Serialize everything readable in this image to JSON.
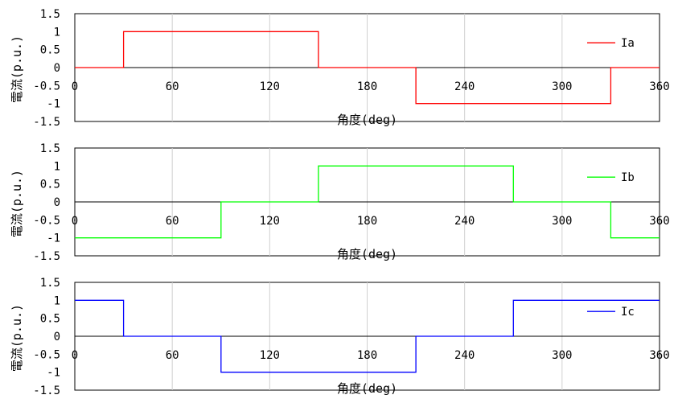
{
  "chart_data": [
    {
      "type": "line",
      "step": true,
      "xlabel": "角度(deg)",
      "ylabel": "電流(p.u.)",
      "xlim": [
        0,
        360
      ],
      "ylim": [
        -1.5,
        1.5
      ],
      "xticks": [
        0,
        60,
        120,
        180,
        240,
        300,
        360
      ],
      "yticks": [
        -1.5,
        -1,
        -0.5,
        0,
        0.5,
        1,
        1.5
      ],
      "ytick_labels": [
        "-1.5",
        "-1",
        "-0.5",
        "0",
        "0.5",
        "1",
        "1.5"
      ],
      "xtick_labels": [
        "0",
        "60",
        "120",
        "180",
        "240",
        "300",
        "360"
      ],
      "grid": true,
      "legend": "right",
      "series": [
        {
          "name": "Ia",
          "color": "#ff0000",
          "x": [
            0,
            30,
            30,
            150,
            150,
            210,
            210,
            330,
            330,
            360
          ],
          "values": [
            0,
            0,
            1,
            1,
            0,
            0,
            -1,
            -1,
            0,
            0
          ]
        }
      ]
    },
    {
      "type": "line",
      "step": true,
      "xlabel": "角度(deg)",
      "ylabel": "電流(p.u.)",
      "xlim": [
        0,
        360
      ],
      "ylim": [
        -1.5,
        1.5
      ],
      "xticks": [
        0,
        60,
        120,
        180,
        240,
        300,
        360
      ],
      "yticks": [
        -1.5,
        -1,
        -0.5,
        0,
        0.5,
        1,
        1.5
      ],
      "ytick_labels": [
        "-1.5",
        "-1",
        "-0.5",
        "0",
        "0.5",
        "1",
        "1.5"
      ],
      "xtick_labels": [
        "0",
        "60",
        "120",
        "180",
        "240",
        "300",
        "360"
      ],
      "grid": true,
      "legend": "right",
      "series": [
        {
          "name": "Ib",
          "color": "#00ff00",
          "x": [
            0,
            90,
            90,
            150,
            150,
            270,
            270,
            330,
            330,
            360
          ],
          "values": [
            -1,
            -1,
            0,
            0,
            1,
            1,
            0,
            0,
            -1,
            -1
          ]
        }
      ]
    },
    {
      "type": "line",
      "step": true,
      "xlabel": "角度(deg)",
      "ylabel": "電流(p.u.)",
      "xlim": [
        0,
        360
      ],
      "ylim": [
        -1.5,
        1.5
      ],
      "xticks": [
        0,
        60,
        120,
        180,
        240,
        300,
        360
      ],
      "yticks": [
        -1.5,
        -1,
        -0.5,
        0,
        0.5,
        1,
        1.5
      ],
      "ytick_labels": [
        "-1.5",
        "-1",
        "-0.5",
        "0",
        "0.5",
        "1",
        "1.5"
      ],
      "xtick_labels": [
        "0",
        "60",
        "120",
        "180",
        "240",
        "300",
        "360"
      ],
      "grid": true,
      "legend": "right",
      "series": [
        {
          "name": "Ic",
          "color": "#0000ff",
          "x": [
            0,
            30,
            30,
            90,
            90,
            210,
            210,
            270,
            270,
            360
          ],
          "values": [
            1,
            1,
            0,
            0,
            -1,
            -1,
            0,
            0,
            1,
            1
          ]
        }
      ]
    }
  ]
}
